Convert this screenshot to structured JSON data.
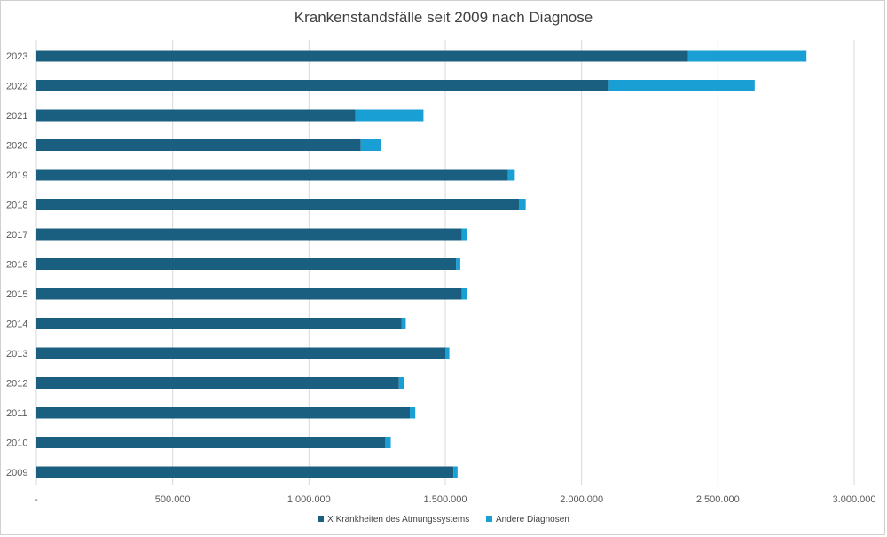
{
  "chart_data": {
    "type": "bar",
    "orientation": "horizontal",
    "stacked": true,
    "title": "Krankenstandsfälle seit 2009 nach Diagnose",
    "categories": [
      "2023",
      "2022",
      "2021",
      "2020",
      "2019",
      "2018",
      "2017",
      "2016",
      "2015",
      "2014",
      "2013",
      "2012",
      "2011",
      "2010",
      "2009"
    ],
    "series": [
      {
        "name": "X Krankheiten des Atmungssystems",
        "color": "#1b5f80",
        "values": [
          2390000,
          2100000,
          1170000,
          1190000,
          1730000,
          1770000,
          1560000,
          1540000,
          1560000,
          1340000,
          1500000,
          1330000,
          1370000,
          1280000,
          1530000
        ]
      },
      {
        "name": "Andere Diagnosen",
        "color": "#1a9fd4",
        "values": [
          435000,
          535000,
          250000,
          75000,
          25000,
          25000,
          20000,
          15000,
          20000,
          15000,
          15000,
          20000,
          20000,
          20000,
          15000
        ]
      }
    ],
    "xlim": [
      0,
      3000000
    ],
    "xticks": [
      0,
      500000,
      1000000,
      1500000,
      2000000,
      2500000,
      3000000
    ],
    "xtick_labels": [
      "-",
      "500.000",
      "1.000.000",
      "1.500.000",
      "2.000.000",
      "2.500.000",
      "3.000.000"
    ],
    "grid": true,
    "legend_position": "bottom"
  }
}
